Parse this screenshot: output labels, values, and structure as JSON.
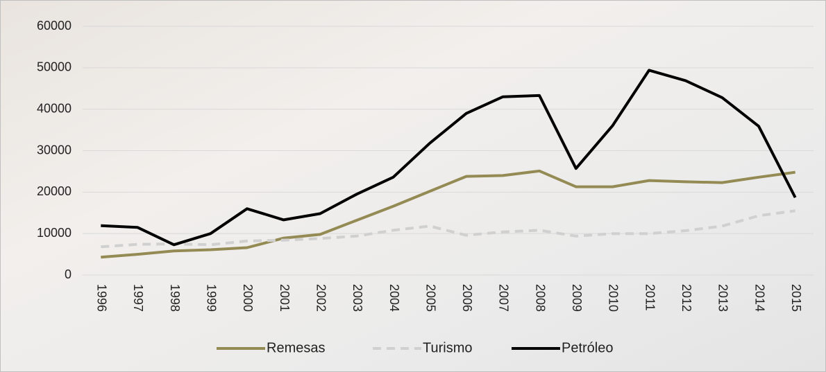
{
  "chart_data": {
    "type": "line",
    "categories": [
      "1996",
      "1997",
      "1998",
      "1999",
      "2000",
      "2001",
      "2002",
      "2003",
      "2004",
      "2005",
      "2006",
      "2007",
      "2008",
      "2009",
      "2010",
      "2011",
      "2012",
      "2013",
      "2014",
      "2015"
    ],
    "series": [
      {
        "name": "Remesas",
        "color": "#948a54",
        "line_style": "solid",
        "values": [
          4300,
          5000,
          5800,
          6100,
          6600,
          8900,
          9800,
          13200,
          16600,
          20200,
          23800,
          24000,
          25100,
          21300,
          21300,
          22800,
          22500,
          22300,
          23600,
          24800
        ]
      },
      {
        "name": "Turismo",
        "color": "#d0d0d0",
        "line_style": "dashed",
        "values": [
          6800,
          7400,
          7500,
          7300,
          8200,
          8400,
          8800,
          9400,
          10800,
          11800,
          9600,
          10400,
          10800,
          9400,
          10000,
          10000,
          10700,
          11800,
          14300,
          15500
        ]
      },
      {
        "name": "Petróleo",
        "color": "#000000",
        "line_style": "solid",
        "values": [
          11900,
          11500,
          7300,
          10000,
          16000,
          13300,
          14800,
          19500,
          23600,
          31800,
          39000,
          43000,
          43300,
          25700,
          36000,
          49400,
          46900,
          42800,
          35900,
          18700
        ]
      }
    ],
    "ylim": [
      0,
      60000
    ],
    "yticks": [
      0,
      10000,
      20000,
      30000,
      40000,
      50000,
      60000
    ],
    "grid": true,
    "legend": "bottom"
  }
}
